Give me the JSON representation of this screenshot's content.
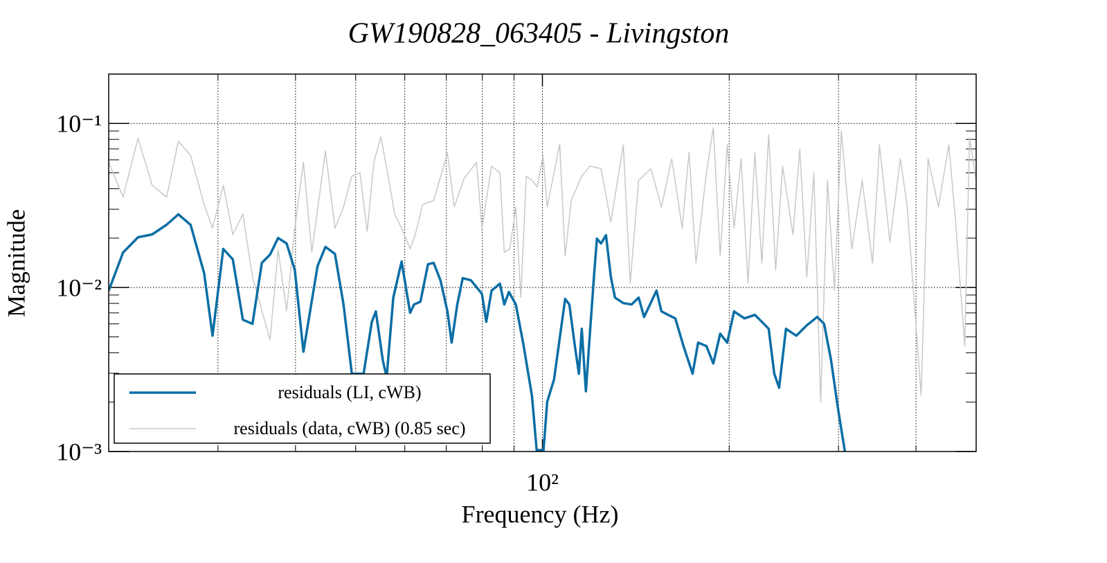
{
  "chart_data": {
    "type": "line",
    "title": "GW190828_063405 - Livingston",
    "x_label": "Frequency (Hz)",
    "y_label": "Magnitude",
    "xlog": true,
    "ylog": true,
    "grid": true,
    "legend": "lower left",
    "xlim": [
      20,
      500
    ],
    "ylim": [
      0.001,
      0.2
    ],
    "xticks": [
      {
        "value": 100,
        "label": "10²"
      }
    ],
    "xminorticks": [
      30,
      40,
      50,
      60,
      70,
      80,
      90,
      200,
      300,
      400
    ],
    "yticks": [
      {
        "value": 0.001,
        "label": "10⁻³"
      },
      {
        "value": 0.01,
        "label": "10⁻²"
      },
      {
        "value": 0.1,
        "label": "10⁻¹"
      }
    ],
    "yminorticks": [
      0.002,
      0.003,
      0.004,
      0.005,
      0.006,
      0.007,
      0.008,
      0.009,
      0.02,
      0.03,
      0.04,
      0.05,
      0.06,
      0.07,
      0.08,
      0.09
    ],
    "series": [
      {
        "name": "residuals (LI, cWB)",
        "color": "#0b6ea5",
        "width": 3.5,
        "x": [
          20.0,
          21.1,
          22.3,
          23.5,
          24.8,
          25.9,
          27.1,
          28.5,
          29.4,
          30.6,
          31.7,
          32.9,
          34.1,
          35.3,
          36.4,
          37.5,
          38.7,
          39.9,
          41.2,
          43.4,
          44.7,
          46.3,
          47.8,
          49.3,
          51.5,
          53.1,
          53.9,
          55.3,
          56.1,
          57.5,
          59.3,
          61.2,
          62.1,
          63.6,
          65.4,
          66.8,
          68.5,
          70.3,
          71.4,
          72.9,
          74.4,
          76.7,
          78.3,
          79.9,
          81.2,
          82.8,
          85.4,
          86.8,
          88.3,
          90.6,
          93.2,
          96.2,
          97.9,
          100.4,
          101.8,
          104.4,
          108.8,
          110.5,
          112.8,
          114.5,
          115.7,
          117.5,
          119.3,
          121.2,
          122.4,
          124.3,
          126.6,
          128.9,
          130.9,
          135.0,
          139.2,
          142.9,
          145.8,
          149.6,
          152.7,
          155.5,
          159.5,
          163.7,
          168.8,
          174.6,
          178.2,
          183.8,
          188.5,
          193.4,
          198.5,
          203.6,
          211.6,
          220.0,
          225.7,
          231.5,
          236.4,
          240.7,
          246.9,
          256.6,
          266.7,
          277.2,
          284.4,
          291.8,
          299.4,
          307.2
        ],
        "values": [
          0.00957,
          0.01635,
          0.02024,
          0.02106,
          0.02414,
          0.02793,
          0.0241,
          0.01221,
          0.00508,
          0.01717,
          0.01483,
          0.00636,
          0.006,
          0.01413,
          0.01588,
          0.02004,
          0.01855,
          0.01282,
          0.00406,
          0.01346,
          0.01768,
          0.01603,
          0.00788,
          0.00298,
          0.00298,
          0.00618,
          0.00715,
          0.00361,
          0.00283,
          0.00868,
          0.01441,
          0.00701,
          0.00788,
          0.00819,
          0.01385,
          0.01413,
          0.01107,
          0.00715,
          0.00461,
          0.00788,
          0.0114,
          0.01107,
          0.01005,
          0.00912,
          0.00618,
          0.00957,
          0.01055,
          0.00788,
          0.00939,
          0.00788,
          0.00448,
          0.00218,
          0.00102,
          0.00102,
          0.00201,
          0.00275,
          0.00851,
          0.00788,
          0.00439,
          0.00298,
          0.0056,
          0.00233,
          0.00534,
          0.01221,
          0.01986,
          0.01855,
          0.02085,
          0.01163,
          0.00868,
          0.00803,
          0.00788,
          0.00868,
          0.00661,
          0.00811,
          0.00957,
          0.00715,
          0.00681,
          0.00648,
          0.00439,
          0.00298,
          0.00461,
          0.00439,
          0.00344,
          0.00523,
          0.00461,
          0.00715,
          0.00648,
          0.00681,
          0.00618,
          0.0056,
          0.00298,
          0.00245,
          0.0056,
          0.00508,
          0.00588,
          0.00661,
          0.006,
          0.00361,
          0.00183,
          0.001
        ]
      },
      {
        "name": "residuals (data, cWB) (0.85 sec)",
        "color": "#c8c8c8",
        "width": 1.5,
        "x": [
          20.0,
          21.1,
          22.3,
          23.5,
          24.8,
          25.9,
          27.1,
          28.5,
          29.4,
          30.6,
          31.7,
          32.9,
          34.1,
          36.4,
          37.5,
          38.7,
          39.9,
          41.2,
          42.5,
          44.7,
          46.3,
          47.8,
          49.3,
          50.8,
          52.2,
          53.5,
          54.9,
          56.3,
          57.8,
          59.3,
          61.2,
          62.4,
          64.1,
          66.8,
          70.3,
          72.1,
          74.7,
          78.3,
          79.9,
          82.8,
          85.4,
          86.8,
          88.6,
          90.6,
          92.3,
          94.2,
          96.2,
          98.1,
          100.2,
          101.8,
          104.4,
          106.6,
          108.8,
          111.3,
          115.7,
          119.3,
          124.3,
          128.9,
          135.0,
          138.5,
          142.9,
          149.6,
          155.5,
          161.6,
          168.0,
          172.3,
          176.8,
          183.8,
          188.5,
          193.4,
          198.5,
          203.6,
          209,
          214.4,
          220.0,
          225.7,
          231.5,
          237.6,
          243.8,
          253.4,
          259.9,
          266.7,
          273.8,
          280.8,
          288,
          295.5,
          303.2,
          315.2,
          327.6,
          340.4,
          349.3,
          363,
          377.4,
          387.2,
          407.6,
          418.2,
          434.8,
          451.8,
          463.4,
          479.2,
          487.8,
          500
        ],
        "values": [
          0.058,
          0.0356,
          0.0815,
          0.042,
          0.0356,
          0.078,
          0.064,
          0.032,
          0.023,
          0.042,
          0.021,
          0.028,
          0.0116,
          0.0048,
          0.017,
          0.0072,
          0.023,
          0.058,
          0.0164,
          0.068,
          0.023,
          0.031,
          0.0477,
          0.05,
          0.022,
          0.058,
          0.083,
          0.05,
          0.028,
          0.023,
          0.0172,
          0.021,
          0.032,
          0.034,
          0.066,
          0.031,
          0.046,
          0.058,
          0.023,
          0.055,
          0.05,
          0.0164,
          0.0172,
          0.031,
          0.0087,
          0.0477,
          0.045,
          0.041,
          0.064,
          0.031,
          0.05,
          0.075,
          0.0156,
          0.034,
          0.0477,
          0.055,
          0.053,
          0.025,
          0.074,
          0.0106,
          0.045,
          0.053,
          0.031,
          0.061,
          0.023,
          0.067,
          0.0141,
          0.05,
          0.094,
          0.0156,
          0.074,
          0.023,
          0.061,
          0.0106,
          0.067,
          0.0141,
          0.0855,
          0.0128,
          0.055,
          0.021,
          0.07,
          0.0116,
          0.05,
          0.002,
          0.045,
          0.0096,
          0.09,
          0.0172,
          0.045,
          0.0141,
          0.074,
          0.019,
          0.061,
          0.031,
          0.0022,
          0.061,
          0.031,
          0.074,
          0.025,
          0.0044,
          0.0815,
          0.045
        ]
      }
    ]
  }
}
